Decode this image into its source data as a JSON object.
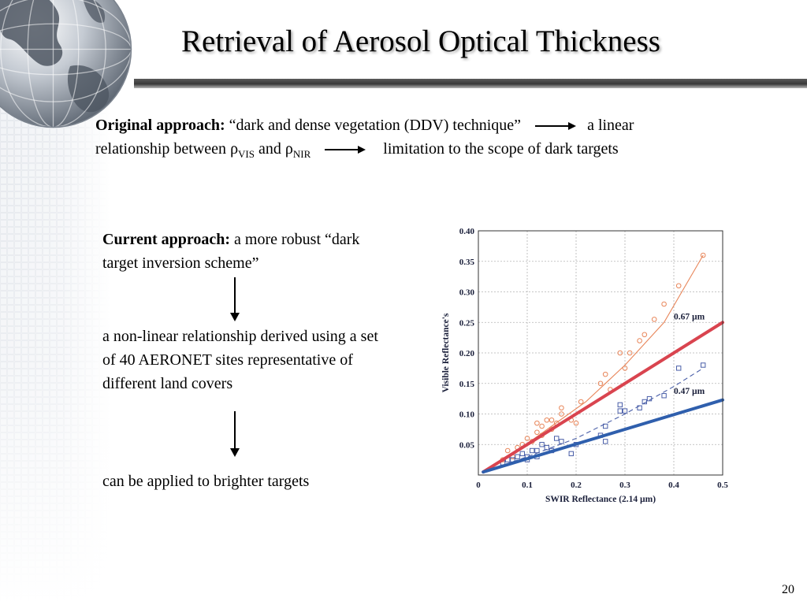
{
  "slide": {
    "title": "Retrieval of Aerosol Optical Thickness",
    "page_number": "20"
  },
  "original": {
    "label": "Original approach:",
    "text1": " “dark and dense vegetation (DDV) technique”",
    "text2": "a linear",
    "text3": "relationship between ",
    "rho": "ρ",
    "sub_vis": "VIS",
    "and": " and ",
    "sub_nir": "NIR",
    "text4": "limitation to the scope of dark targets"
  },
  "current": {
    "label": "Current approach:",
    "text": " a more robust “dark target inversion scheme”",
    "step1": "a non-linear relationship derived using a set of 40 AERONET sites representative of different land covers",
    "step2": "can be applied to brighter targets"
  },
  "colors": {
    "red_series": "#d9444f",
    "blue_series": "#2f5fad",
    "orange_points": "#e8865a",
    "blue_points": "#4a5fa8",
    "axis_text": "#1a1f3a"
  },
  "chart_data": {
    "type": "scatter",
    "xlabel": "SWIR Reflectance (2.14 µm)",
    "ylabel": "Visible Reflectance's",
    "xlim": [
      0,
      0.5
    ],
    "ylim": [
      0,
      0.4
    ],
    "x_ticks": [
      "0",
      "0.1",
      "0.2",
      "0.3",
      "0.4",
      "0.5"
    ],
    "y_ticks": [
      "0.05",
      "0.10",
      "0.15",
      "0.20",
      "0.25",
      "0.30",
      "0.35",
      "0.40"
    ],
    "grid": true,
    "series": [
      {
        "name": "0.67 µm",
        "marker": "circle",
        "points": [
          [
            0.05,
            0.025
          ],
          [
            0.06,
            0.04
          ],
          [
            0.07,
            0.03
          ],
          [
            0.08,
            0.045
          ],
          [
            0.09,
            0.05
          ],
          [
            0.1,
            0.06
          ],
          [
            0.11,
            0.055
          ],
          [
            0.12,
            0.07
          ],
          [
            0.12,
            0.085
          ],
          [
            0.13,
            0.08
          ],
          [
            0.13,
            0.065
          ],
          [
            0.14,
            0.09
          ],
          [
            0.15,
            0.075
          ],
          [
            0.15,
            0.09
          ],
          [
            0.16,
            0.085
          ],
          [
            0.17,
            0.1
          ],
          [
            0.17,
            0.11
          ],
          [
            0.19,
            0.09
          ],
          [
            0.2,
            0.085
          ],
          [
            0.21,
            0.12
          ],
          [
            0.25,
            0.15
          ],
          [
            0.26,
            0.165
          ],
          [
            0.27,
            0.14
          ],
          [
            0.29,
            0.2
          ],
          [
            0.3,
            0.175
          ],
          [
            0.31,
            0.2
          ],
          [
            0.33,
            0.22
          ],
          [
            0.34,
            0.23
          ],
          [
            0.36,
            0.255
          ],
          [
            0.38,
            0.28
          ],
          [
            0.41,
            0.31
          ],
          [
            0.46,
            0.36
          ]
        ]
      },
      {
        "name": "0.47 µm",
        "marker": "square",
        "points": [
          [
            0.05,
            0.02
          ],
          [
            0.06,
            0.025
          ],
          [
            0.07,
            0.025
          ],
          [
            0.08,
            0.03
          ],
          [
            0.09,
            0.035
          ],
          [
            0.1,
            0.03
          ],
          [
            0.1,
            0.025
          ],
          [
            0.11,
            0.04
          ],
          [
            0.12,
            0.04
          ],
          [
            0.12,
            0.03
          ],
          [
            0.13,
            0.05
          ],
          [
            0.14,
            0.045
          ],
          [
            0.15,
            0.04
          ],
          [
            0.16,
            0.06
          ],
          [
            0.17,
            0.055
          ],
          [
            0.19,
            0.035
          ],
          [
            0.2,
            0.05
          ],
          [
            0.25,
            0.065
          ],
          [
            0.26,
            0.08
          ],
          [
            0.26,
            0.055
          ],
          [
            0.29,
            0.105
          ],
          [
            0.29,
            0.115
          ],
          [
            0.3,
            0.105
          ],
          [
            0.33,
            0.11
          ],
          [
            0.34,
            0.12
          ],
          [
            0.35,
            0.125
          ],
          [
            0.38,
            0.13
          ],
          [
            0.41,
            0.175
          ],
          [
            0.46,
            0.18
          ]
        ]
      }
    ],
    "fit_lines": [
      {
        "series": "0.67 µm",
        "points": [
          [
            0.01,
            0.005
          ],
          [
            0.08,
            0.04
          ],
          [
            0.15,
            0.08
          ],
          [
            0.22,
            0.12
          ],
          [
            0.3,
            0.18
          ],
          [
            0.38,
            0.25
          ],
          [
            0.46,
            0.36
          ]
        ]
      },
      {
        "series": "0.47 µm",
        "points": [
          [
            0.01,
            0.005
          ],
          [
            0.1,
            0.03
          ],
          [
            0.2,
            0.06
          ],
          [
            0.3,
            0.1
          ],
          [
            0.4,
            0.145
          ],
          [
            0.46,
            0.175
          ]
        ]
      }
    ],
    "reference_lines": [
      {
        "name": "0.67 µm",
        "points": [
          [
            0.01,
            0.005
          ],
          [
            0.5,
            0.25
          ]
        ]
      },
      {
        "name": "0.47 µm",
        "points": [
          [
            0.01,
            0.005
          ],
          [
            0.5,
            0.123
          ]
        ]
      }
    ],
    "annotations": [
      {
        "text": "0.67 µm",
        "x": 0.4,
        "y": 0.255
      },
      {
        "text": "0.47 µm",
        "x": 0.4,
        "y": 0.133
      }
    ]
  }
}
